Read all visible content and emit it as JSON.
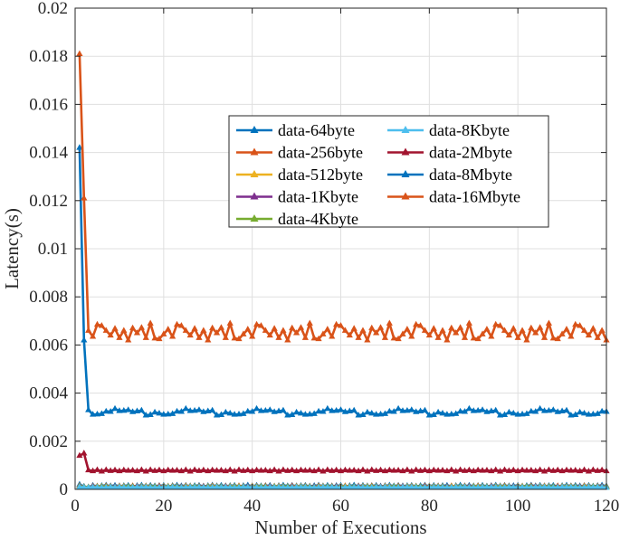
{
  "chart_data": {
    "type": "line",
    "title": "",
    "xlabel": "Number of Executions",
    "ylabel": "Latency(s)",
    "xlim": [
      0,
      120
    ],
    "ylim": [
      0,
      0.02
    ],
    "xticks": [
      0,
      20,
      40,
      60,
      80,
      100,
      120
    ],
    "xtick_labels": [
      "0",
      "20",
      "40",
      "60",
      "80",
      "100",
      "120"
    ],
    "yticks": [
      0,
      0.002,
      0.004,
      0.006,
      0.008,
      0.01,
      0.012,
      0.014,
      0.016,
      0.018,
      0.02
    ],
    "ytick_labels": [
      "0",
      "0.002",
      "0.004",
      "0.006",
      "0.008",
      "0.01",
      "0.012",
      "0.014",
      "0.016",
      "0.018",
      "0.02"
    ],
    "grid": true,
    "legend_position": "upper-right-center",
    "legend_columns": 2,
    "legend_order": [
      "data-64byte",
      "data-8Kbyte",
      "data-256byte",
      "data-2Mbyte",
      "data-512byte",
      "data-8Mbyte",
      "data-1Kbyte",
      "data-16Mbyte",
      "data-4Kbyte"
    ],
    "series": [
      {
        "name": "data-64byte",
        "color": "#0072BD",
        "start": 0.00015,
        "noise": [
          1e-05,
          -1e-05,
          2e-05,
          0.0,
          -2e-05,
          1e-05,
          0.0,
          -1e-05
        ],
        "values": [
          0.0002,
          0.00012,
          9e-05
        ]
      },
      {
        "name": "data-256byte",
        "color": "#D95319",
        "start": 0.00012,
        "noise": [
          1e-05,
          0.0,
          -1e-05,
          2e-05,
          0.0,
          -1e-05
        ],
        "values": [
          0.00015,
          0.0001,
          8e-05
        ]
      },
      {
        "name": "data-512byte",
        "color": "#EDB120",
        "start": 0.00011,
        "noise": [
          0.0,
          1e-05,
          -1e-05,
          0.0,
          1e-05
        ],
        "values": [
          0.00014,
          0.0001,
          9e-05
        ]
      },
      {
        "name": "data-1Kbyte",
        "color": "#7E2F8E",
        "start": 0.0001,
        "noise": [
          1e-05,
          -1e-05,
          0.0,
          1e-05,
          0.0
        ],
        "values": [
          0.00013,
          0.0001,
          9e-05
        ]
      },
      {
        "name": "data-4Kbyte",
        "color": "#77AC30",
        "start": 0.0001,
        "noise": [
          0.0,
          1e-05,
          0.0,
          -1e-05,
          1e-05
        ],
        "values": [
          0.00012,
          0.0001,
          9e-05
        ]
      },
      {
        "name": "data-8Kbyte",
        "color": "#4DBEEE",
        "start": 8e-05,
        "noise": [
          1e-05,
          0.0,
          -1e-05,
          0.0,
          1e-05,
          0.0
        ],
        "values": [
          0.0001,
          8e-05,
          7e-05
        ]
      },
      {
        "name": "data-2Mbyte",
        "color": "#A2142F",
        "start": 0.00078,
        "noise": [
          3e-05,
          -2e-05,
          1e-05,
          -3e-05,
          2e-05,
          0.0,
          3e-05,
          -1e-05,
          2e-05,
          -2e-05
        ],
        "values": [
          0.0014,
          0.0015,
          0.0008
        ]
      },
      {
        "name": "data-8Mbyte",
        "color": "#0072BD",
        "start": 0.0032,
        "noise": [
          5e-05,
          -8e-05,
          0.0001,
          -4e-05,
          6e-05,
          -0.0001,
          3e-05,
          8e-05,
          -6e-05,
          2e-05,
          -9e-05,
          7e-05,
          0.0,
          0.00015,
          -0.00012,
          4e-05
        ],
        "values": [
          0.0142,
          0.0062,
          0.0033
        ]
      },
      {
        "name": "data-16Mbyte",
        "color": "#D95319",
        "start": 0.0065,
        "noise": [
          0.0002,
          -0.0001,
          0.00015,
          -0.0002,
          0.0001,
          0.0003,
          -0.00025,
          0.0,
          0.00018,
          -0.00015,
          0.0004,
          -0.0003,
          0.0001,
          -5e-05,
          0.00022,
          -0.0002,
          0.00035,
          -0.00022
        ],
        "values": [
          0.0181,
          0.0121,
          0.0066
        ]
      }
    ]
  }
}
